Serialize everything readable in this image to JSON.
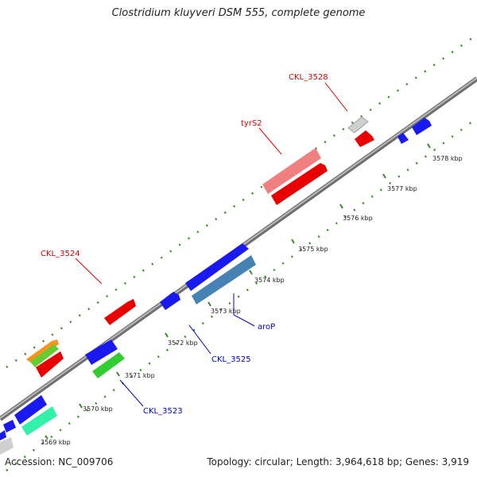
{
  "title": "Clostridium kluyveri DSM 555, complete genome",
  "footer": {
    "accession": "Accession: NC_009706",
    "stats": "Topology: circular; Length: 3,964,618 bp; Genes: 3,919"
  },
  "colors": {
    "backbone": "#8a8a8a",
    "forward_label": "#dd0000",
    "reverse_label": "#0000cc",
    "tick_dot": "#3a8a2a"
  },
  "kbp_labels": [
    "3569 kbp",
    "3570 kbp",
    "3571 kbp",
    "3572 kbp",
    "3573 kbp",
    "3574 kbp",
    "3575 kbp",
    "3576 kbp",
    "3577 kbp",
    "3578 kbp"
  ],
  "gene_labels": {
    "ckl3528": "CKL_3528",
    "tyrs2": "tyrS2",
    "ckl3524": "CKL_3524",
    "arop": "aroP",
    "ckl3525": "CKL_3525",
    "ckl3523": "CKL_3523"
  }
}
